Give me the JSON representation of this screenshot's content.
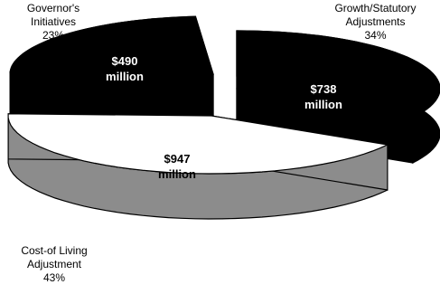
{
  "chart_data": {
    "type": "pie",
    "style": "3d-exploded",
    "title": "",
    "slices": [
      {
        "label_lines": [
          "Governor's",
          "Initiatives"
        ],
        "percent": "23%",
        "value": 23,
        "amount": "$490",
        "unit": "million",
        "color": "#000000",
        "text_color": "#ffffff"
      },
      {
        "label_lines": [
          "Growth/Statutory",
          "Adjustments"
        ],
        "percent": "34%",
        "value": 34,
        "amount": "$738",
        "unit": "million",
        "color": "#000000",
        "text_color": "#ffffff"
      },
      {
        "label_lines": [
          "Cost-of Living",
          "Adjustment"
        ],
        "percent": "43%",
        "value": 43,
        "amount": "$947",
        "unit": "million",
        "color": "#ffffff",
        "side_color": "#8c8c8c",
        "text_color": "#000000"
      }
    ]
  }
}
